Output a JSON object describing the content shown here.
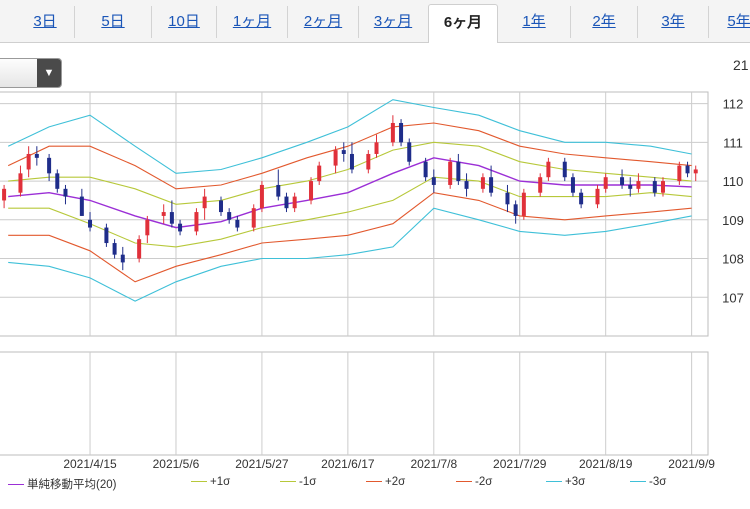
{
  "tabs": [
    {
      "label": "3日",
      "active": false
    },
    {
      "label": "5日",
      "active": false
    },
    {
      "label": "10日",
      "active": false
    },
    {
      "label": "1ヶ月",
      "active": false
    },
    {
      "label": "2ヶ月",
      "active": false
    },
    {
      "label": "3ヶ月",
      "active": false
    },
    {
      "label": "6ヶ月",
      "active": true
    },
    {
      "label": "1年",
      "active": false
    },
    {
      "label": "2年",
      "active": false
    },
    {
      "label": "3年",
      "active": false
    },
    {
      "label": "5年",
      "active": false
    }
  ],
  "select": {
    "value": "",
    "arrow_icon": "triangle-down"
  },
  "corner_label": "21",
  "legend": {
    "items": [
      {
        "label": "単純移動平均(20)",
        "color": "#9b2fd6"
      },
      {
        "label": "+1σ",
        "color": "#b7c83a"
      },
      {
        "label": "-1σ",
        "color": "#b7c83a"
      },
      {
        "label": "+2σ",
        "color": "#e2592e"
      },
      {
        "label": "-2σ",
        "color": "#e2592e"
      },
      {
        "label": "+3σ",
        "color": "#3fc0d8"
      },
      {
        "label": "-3σ",
        "color": "#3fc0d8"
      }
    ]
  },
  "chart_data": {
    "type": "candlestick",
    "title": "",
    "xlabel": "",
    "ylabel": "",
    "ylim": [
      106,
      112.3
    ],
    "yticks": [
      107,
      108,
      109,
      110,
      111,
      112
    ],
    "x_tick_labels": [
      "2021/4/15",
      "2021/5/6",
      "2021/5/27",
      "2021/6/17",
      "2021/7/8",
      "2021/7/29",
      "2021/8/19",
      "2021/9/9"
    ],
    "x_range": [
      "2021/3/24",
      "2021/9/13"
    ],
    "grid": true,
    "colors": {
      "up": "#e0303a",
      "down": "#1f2d8a",
      "grid": "#cccccc"
    },
    "series": [
      {
        "name": "単純移動平均(20)",
        "color": "#9b2fd6",
        "points": [
          [
            "2021/3/26",
            109.6
          ],
          [
            "2021/4/5",
            109.7
          ],
          [
            "2021/4/15",
            109.5
          ],
          [
            "2021/4/26",
            109.1
          ],
          [
            "2021/5/6",
            108.8
          ],
          [
            "2021/5/17",
            108.95
          ],
          [
            "2021/5/27",
            109.3
          ],
          [
            "2021/6/7",
            109.5
          ],
          [
            "2021/6/17",
            109.7
          ],
          [
            "2021/6/28",
            110.2
          ],
          [
            "2021/7/8",
            110.6
          ],
          [
            "2021/7/19",
            110.4
          ],
          [
            "2021/7/29",
            110.0
          ],
          [
            "2021/8/9",
            109.9
          ],
          [
            "2021/8/19",
            109.9
          ],
          [
            "2021/8/30",
            109.9
          ],
          [
            "2021/9/9",
            109.85
          ]
        ]
      },
      {
        "name": "+1σ",
        "color": "#b7c83a",
        "points": [
          [
            "2021/3/26",
            110.0
          ],
          [
            "2021/4/5",
            110.1
          ],
          [
            "2021/4/15",
            110.1
          ],
          [
            "2021/4/26",
            109.8
          ],
          [
            "2021/5/6",
            109.4
          ],
          [
            "2021/5/17",
            109.5
          ],
          [
            "2021/5/27",
            109.8
          ],
          [
            "2021/6/7",
            110.0
          ],
          [
            "2021/6/17",
            110.3
          ],
          [
            "2021/6/28",
            110.8
          ],
          [
            "2021/7/8",
            111.0
          ],
          [
            "2021/7/19",
            110.9
          ],
          [
            "2021/7/29",
            110.5
          ],
          [
            "2021/8/9",
            110.3
          ],
          [
            "2021/8/19",
            110.2
          ],
          [
            "2021/8/30",
            110.1
          ],
          [
            "2021/9/9",
            110.0
          ]
        ]
      },
      {
        "name": "-1σ",
        "color": "#b7c83a",
        "points": [
          [
            "2021/3/26",
            109.3
          ],
          [
            "2021/4/5",
            109.3
          ],
          [
            "2021/4/15",
            108.9
          ],
          [
            "2021/4/26",
            108.4
          ],
          [
            "2021/5/6",
            108.3
          ],
          [
            "2021/5/17",
            108.5
          ],
          [
            "2021/5/27",
            108.8
          ],
          [
            "2021/6/7",
            109.0
          ],
          [
            "2021/6/17",
            109.2
          ],
          [
            "2021/6/28",
            109.5
          ],
          [
            "2021/7/8",
            110.1
          ],
          [
            "2021/7/19",
            110.0
          ],
          [
            "2021/7/29",
            109.6
          ],
          [
            "2021/8/9",
            109.6
          ],
          [
            "2021/8/19",
            109.6
          ],
          [
            "2021/8/30",
            109.7
          ],
          [
            "2021/9/9",
            109.6
          ]
        ]
      },
      {
        "name": "+2σ",
        "color": "#e2592e",
        "points": [
          [
            "2021/3/26",
            110.4
          ],
          [
            "2021/4/5",
            110.9
          ],
          [
            "2021/4/15",
            110.9
          ],
          [
            "2021/4/26",
            110.4
          ],
          [
            "2021/5/6",
            109.8
          ],
          [
            "2021/5/17",
            109.9
          ],
          [
            "2021/5/27",
            110.2
          ],
          [
            "2021/6/7",
            110.6
          ],
          [
            "2021/6/17",
            110.9
          ],
          [
            "2021/6/28",
            111.4
          ],
          [
            "2021/7/8",
            111.5
          ],
          [
            "2021/7/19",
            111.3
          ],
          [
            "2021/7/29",
            110.9
          ],
          [
            "2021/8/9",
            110.7
          ],
          [
            "2021/8/19",
            110.6
          ],
          [
            "2021/8/30",
            110.5
          ],
          [
            "2021/9/9",
            110.4
          ]
        ]
      },
      {
        "name": "-2σ",
        "color": "#e2592e",
        "points": [
          [
            "2021/3/26",
            108.6
          ],
          [
            "2021/4/5",
            108.6
          ],
          [
            "2021/4/15",
            108.2
          ],
          [
            "2021/4/26",
            107.4
          ],
          [
            "2021/5/6",
            107.8
          ],
          [
            "2021/5/17",
            108.1
          ],
          [
            "2021/5/27",
            108.4
          ],
          [
            "2021/6/7",
            108.5
          ],
          [
            "2021/6/17",
            108.6
          ],
          [
            "2021/6/28",
            108.9
          ],
          [
            "2021/7/8",
            109.7
          ],
          [
            "2021/7/19",
            109.5
          ],
          [
            "2021/7/29",
            109.1
          ],
          [
            "2021/8/9",
            109.0
          ],
          [
            "2021/8/19",
            109.1
          ],
          [
            "2021/8/30",
            109.2
          ],
          [
            "2021/9/9",
            109.3
          ]
        ]
      },
      {
        "name": "+3σ",
        "color": "#3fc0d8",
        "points": [
          [
            "2021/3/26",
            110.9
          ],
          [
            "2021/4/5",
            111.4
          ],
          [
            "2021/4/15",
            111.7
          ],
          [
            "2021/4/26",
            110.9
          ],
          [
            "2021/5/6",
            110.2
          ],
          [
            "2021/5/17",
            110.3
          ],
          [
            "2021/5/27",
            110.6
          ],
          [
            "2021/6/7",
            111.0
          ],
          [
            "2021/6/17",
            111.4
          ],
          [
            "2021/6/28",
            112.1
          ],
          [
            "2021/7/8",
            111.9
          ],
          [
            "2021/7/19",
            111.7
          ],
          [
            "2021/7/29",
            111.3
          ],
          [
            "2021/8/9",
            111.0
          ],
          [
            "2021/8/19",
            111.0
          ],
          [
            "2021/8/30",
            110.9
          ],
          [
            "2021/9/9",
            110.7
          ]
        ]
      },
      {
        "name": "-3σ",
        "color": "#3fc0d8",
        "points": [
          [
            "2021/3/26",
            107.9
          ],
          [
            "2021/4/5",
            107.8
          ],
          [
            "2021/4/15",
            107.5
          ],
          [
            "2021/4/26",
            106.9
          ],
          [
            "2021/5/6",
            107.4
          ],
          [
            "2021/5/17",
            107.8
          ],
          [
            "2021/5/27",
            108.0
          ],
          [
            "2021/6/7",
            108.0
          ],
          [
            "2021/6/17",
            108.1
          ],
          [
            "2021/6/28",
            108.3
          ],
          [
            "2021/7/8",
            109.3
          ],
          [
            "2021/7/19",
            109.0
          ],
          [
            "2021/7/29",
            108.7
          ],
          [
            "2021/8/9",
            108.6
          ],
          [
            "2021/8/19",
            108.7
          ],
          [
            "2021/8/30",
            108.9
          ],
          [
            "2021/9/9",
            109.1
          ]
        ]
      }
    ],
    "candles": [
      [
        "2021/3/25",
        109.5,
        109.9,
        109.3,
        109.8
      ],
      [
        "2021/3/29",
        109.7,
        110.4,
        109.6,
        110.2
      ],
      [
        "2021/3/31",
        110.3,
        110.9,
        110.1,
        110.7
      ],
      [
        "2021/4/2",
        110.7,
        110.9,
        110.4,
        110.6
      ],
      [
        "2021/4/5",
        110.6,
        110.7,
        110.0,
        110.2
      ],
      [
        "2021/4/7",
        110.2,
        110.3,
        109.7,
        109.8
      ],
      [
        "2021/4/9",
        109.8,
        109.9,
        109.4,
        109.6
      ],
      [
        "2021/4/13",
        109.6,
        109.8,
        109.1,
        109.1
      ],
      [
        "2021/4/15",
        109.0,
        109.2,
        108.7,
        108.8
      ],
      [
        "2021/4/19",
        108.8,
        108.9,
        108.3,
        108.4
      ],
      [
        "2021/4/21",
        108.4,
        108.5,
        108.0,
        108.1
      ],
      [
        "2021/4/23",
        108.1,
        108.3,
        107.7,
        107.9
      ],
      [
        "2021/4/27",
        108.0,
        108.6,
        107.9,
        108.5
      ],
      [
        "2021/4/29",
        108.6,
        109.1,
        108.4,
        109.0
      ],
      [
        "2021/5/3",
        109.1,
        109.4,
        108.9,
        109.2
      ],
      [
        "2021/5/5",
        109.2,
        109.5,
        108.8,
        108.9
      ],
      [
        "2021/5/7",
        108.9,
        109.0,
        108.6,
        108.7
      ],
      [
        "2021/5/11",
        108.7,
        109.3,
        108.6,
        109.2
      ],
      [
        "2021/5/13",
        109.3,
        109.8,
        109.0,
        109.6
      ],
      [
        "2021/5/17",
        109.5,
        109.6,
        109.1,
        109.2
      ],
      [
        "2021/5/19",
        109.2,
        109.3,
        108.9,
        109.0
      ],
      [
        "2021/5/21",
        109.0,
        109.1,
        108.7,
        108.8
      ],
      [
        "2021/5/25",
        108.8,
        109.4,
        108.7,
        109.3
      ],
      [
        "2021/5/27",
        109.3,
        110.0,
        109.2,
        109.9
      ],
      [
        "2021/5/31",
        109.9,
        110.3,
        109.5,
        109.6
      ],
      [
        "2021/6/2",
        109.6,
        109.7,
        109.2,
        109.3
      ],
      [
        "2021/6/4",
        109.3,
        109.7,
        109.2,
        109.6
      ],
      [
        "2021/6/8",
        109.5,
        110.1,
        109.4,
        110.0
      ],
      [
        "2021/6/10",
        110.0,
        110.5,
        109.9,
        110.4
      ],
      [
        "2021/6/14",
        110.4,
        110.9,
        110.2,
        110.8
      ],
      [
        "2021/6/16",
        110.8,
        111.0,
        110.5,
        110.7
      ],
      [
        "2021/6/18",
        110.7,
        111.0,
        110.2,
        110.3
      ],
      [
        "2021/6/22",
        110.3,
        110.8,
        110.2,
        110.7
      ],
      [
        "2021/6/24",
        110.7,
        111.2,
        110.6,
        111.0
      ],
      [
        "2021/6/28",
        111.0,
        111.7,
        110.9,
        111.5
      ],
      [
        "2021/6/30",
        111.5,
        111.6,
        110.9,
        111.0
      ],
      [
        "2021/7/2",
        111.0,
        111.1,
        110.4,
        110.5
      ],
      [
        "2021/7/6",
        110.5,
        110.6,
        110.0,
        110.1
      ],
      [
        "2021/7/8",
        110.1,
        110.3,
        109.7,
        109.9
      ],
      [
        "2021/7/12",
        109.9,
        110.6,
        109.8,
        110.5
      ],
      [
        "2021/7/14",
        110.5,
        110.7,
        109.9,
        110.0
      ],
      [
        "2021/7/16",
        110.0,
        110.2,
        109.6,
        109.8
      ],
      [
        "2021/7/20",
        109.8,
        110.2,
        109.7,
        110.1
      ],
      [
        "2021/7/22",
        110.1,
        110.4,
        109.6,
        109.7
      ],
      [
        "2021/7/26",
        109.7,
        109.9,
        109.2,
        109.4
      ],
      [
        "2021/7/28",
        109.4,
        109.5,
        108.9,
        109.1
      ],
      [
        "2021/7/30",
        109.1,
        109.8,
        109.0,
        109.7
      ],
      [
        "2021/8/3",
        109.7,
        110.2,
        109.6,
        110.1
      ],
      [
        "2021/8/5",
        110.1,
        110.6,
        110.0,
        110.5
      ],
      [
        "2021/8/9",
        110.5,
        110.6,
        110.0,
        110.1
      ],
      [
        "2021/8/11",
        110.1,
        110.2,
        109.6,
        109.7
      ],
      [
        "2021/8/13",
        109.7,
        109.8,
        109.3,
        109.4
      ],
      [
        "2021/8/17",
        109.4,
        109.9,
        109.3,
        109.8
      ],
      [
        "2021/8/19",
        109.8,
        110.2,
        109.7,
        110.1
      ],
      [
        "2021/8/23",
        110.1,
        110.3,
        109.8,
        109.9
      ],
      [
        "2021/8/25",
        109.9,
        110.1,
        109.6,
        109.8
      ],
      [
        "2021/8/27",
        109.8,
        110.2,
        109.7,
        110.0
      ],
      [
        "2021/8/31",
        110.0,
        110.1,
        109.6,
        109.7
      ],
      [
        "2021/9/2",
        109.7,
        110.1,
        109.6,
        110.0
      ],
      [
        "2021/9/6",
        110.0,
        110.5,
        109.9,
        110.4
      ],
      [
        "2021/9/8",
        110.4,
        110.5,
        110.1,
        110.2
      ],
      [
        "2021/9/10",
        110.2,
        110.4,
        110.0,
        110.3
      ]
    ]
  }
}
